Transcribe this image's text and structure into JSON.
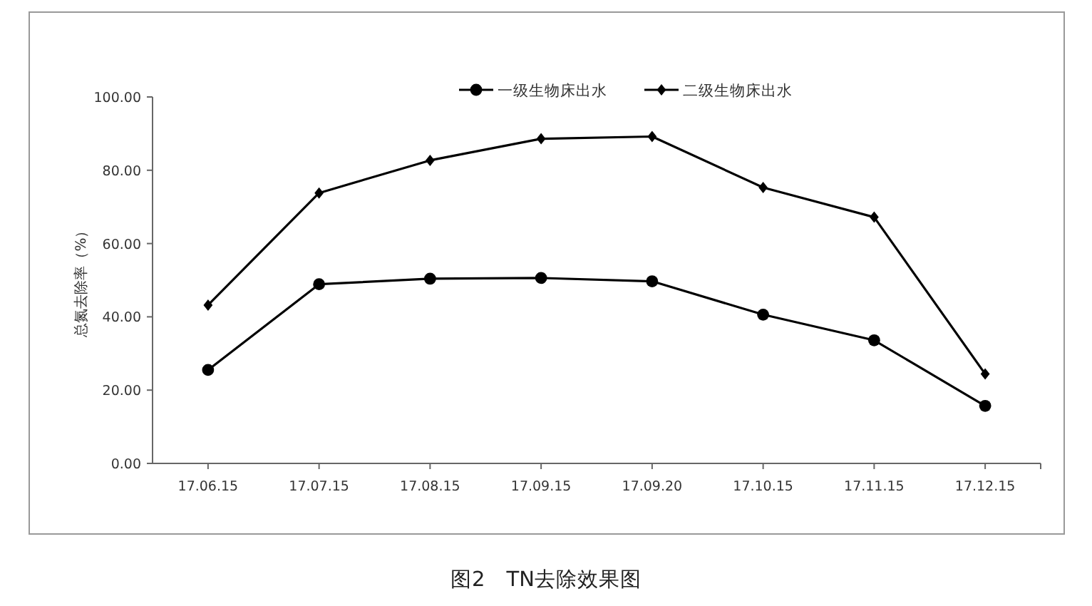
{
  "chart_data": {
    "type": "line",
    "title": "图2　TN去除效果图",
    "ylabel": "总氮去除率（%）",
    "categories": [
      "17.06.15",
      "17.07.15",
      "17.08.15",
      "17.09.15",
      "17.09.20",
      "17.10.15",
      "17.11.15",
      "17.12.15"
    ],
    "series": [
      {
        "name": "一级生物床出水",
        "color": "#000000",
        "marker": "circle",
        "values": [
          25.5,
          48.9,
          50.4,
          50.6,
          49.7,
          40.6,
          33.6,
          15.7
        ]
      },
      {
        "name": "二级生物床出水",
        "color": "#000000",
        "marker": "diamond",
        "values": [
          43.2,
          73.8,
          82.7,
          88.6,
          89.2,
          75.3,
          67.2,
          24.4
        ]
      }
    ],
    "ylim": [
      0,
      100
    ],
    "yticks": [
      {
        "value": 0,
        "label": "0.00"
      },
      {
        "value": 20,
        "label": "20.00"
      },
      {
        "value": 40,
        "label": "40.00"
      },
      {
        "value": 60,
        "label": "60.00"
      },
      {
        "value": 80,
        "label": "80.00"
      },
      {
        "value": 100,
        "label": "100.00"
      }
    ],
    "legend": "top",
    "grid": false,
    "line_style": "solid"
  }
}
